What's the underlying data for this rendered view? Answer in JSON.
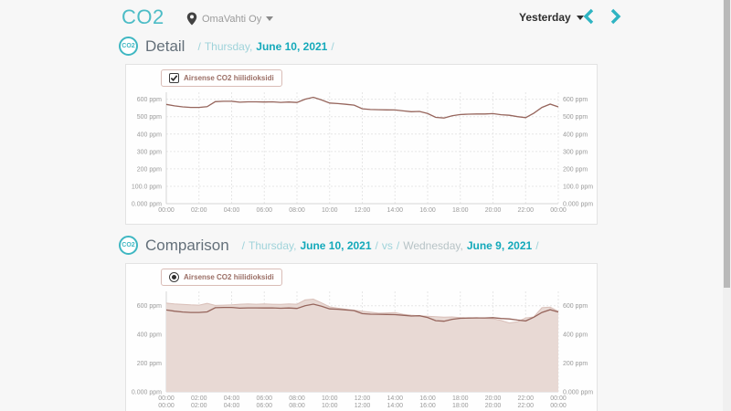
{
  "header": {
    "title": "CO2",
    "location_label": "OmaVahti Oy",
    "period_label": "Yesterday"
  },
  "detail": {
    "heading": "Detail",
    "crumbs": {
      "slash1": "/",
      "day": "Thursday,",
      "date": "June 10, 2021",
      "slash2": "/"
    },
    "legend_label": "Airsense CO2 hiilidioksidi"
  },
  "comparison": {
    "heading": "Comparison",
    "crumbs": {
      "slash1": "/",
      "day1": "Thursday,",
      "date1": "June 10, 2021",
      "slash2": "/",
      "vs": "vs",
      "slash3": "/",
      "day2": "Wednesday,",
      "date2": "June 9, 2021",
      "slash4": "/"
    },
    "legend_label": "Airsense CO2 hiilidioksidi"
  },
  "colors": {
    "accent": "#2fb4c2",
    "line": "#96655c",
    "area_fill": "#e8d9d4",
    "area_edge": "#d9bfb8",
    "grid": "#e6e6e6",
    "axis": "#d5d5d5",
    "tick_text": "#9a9a9a"
  },
  "chart_data": [
    {
      "type": "line",
      "title": "Detail — Airsense CO2 hiilidioksidi",
      "x_unit": "hours",
      "x_step": 0.5,
      "xlim": [
        0,
        24
      ],
      "ylim": [
        0,
        640
      ],
      "grid": true,
      "legend_position": "top-left",
      "yticks": [
        {
          "v": 600,
          "label": "600 ppm"
        },
        {
          "v": 500,
          "label": "500 ppm"
        },
        {
          "v": 400,
          "label": "400 ppm"
        },
        {
          "v": 300,
          "label": "300 ppm"
        },
        {
          "v": 200,
          "label": "200 ppm"
        },
        {
          "v": 100,
          "label": "100.0 ppm"
        },
        {
          "v": 0,
          "label": "0.000 ppm"
        }
      ],
      "xticks": [
        {
          "h": 0,
          "label": "00:00"
        },
        {
          "h": 2,
          "label": "02:00"
        },
        {
          "h": 4,
          "label": "04:00"
        },
        {
          "h": 6,
          "label": "06:00"
        },
        {
          "h": 8,
          "label": "08:00"
        },
        {
          "h": 10,
          "label": "10:00"
        },
        {
          "h": 12,
          "label": "12:00"
        },
        {
          "h": 14,
          "label": "14:00"
        },
        {
          "h": 16,
          "label": "16:00"
        },
        {
          "h": 18,
          "label": "18:00"
        },
        {
          "h": 20,
          "label": "20:00"
        },
        {
          "h": 22,
          "label": "22:00"
        },
        {
          "h": 24,
          "label": "00:00"
        }
      ],
      "xtick_rows": 1,
      "series": [
        {
          "name": "Airsense CO2 hiilidioksidi — Thursday, June 10, 2021",
          "style": "line",
          "values": [
            570,
            562,
            556,
            553,
            553,
            557,
            586,
            588,
            588,
            583,
            585,
            585,
            584,
            585,
            582,
            584,
            581,
            600,
            611,
            596,
            578,
            575,
            571,
            566,
            545,
            541,
            540,
            539,
            538,
            533,
            528,
            530,
            518,
            496,
            492,
            505,
            512,
            514,
            515,
            515,
            517,
            511,
            508,
            500,
            494,
            520,
            553,
            572,
            556
          ]
        }
      ]
    },
    {
      "type": "area",
      "title": "Comparison — Airsense CO2 hiilidioksidi",
      "x_unit": "hours",
      "x_step": 0.5,
      "xlim": [
        0,
        24
      ],
      "ylim": [
        0,
        700
      ],
      "grid": true,
      "legend_position": "top-left",
      "yticks": [
        {
          "v": 600,
          "label": "600 ppm"
        },
        {
          "v": 400,
          "label": "400 ppm"
        },
        {
          "v": 200,
          "label": "200 ppm"
        },
        {
          "v": 0,
          "label": "0.000 ppm"
        }
      ],
      "xticks": [
        {
          "h": 0,
          "label": "00:00"
        },
        {
          "h": 2,
          "label": "02:00"
        },
        {
          "h": 4,
          "label": "04:00"
        },
        {
          "h": 6,
          "label": "06:00"
        },
        {
          "h": 8,
          "label": "08:00"
        },
        {
          "h": 10,
          "label": "10:00"
        },
        {
          "h": 12,
          "label": "12:00"
        },
        {
          "h": 14,
          "label": "14:00"
        },
        {
          "h": 16,
          "label": "16:00"
        },
        {
          "h": 18,
          "label": "18:00"
        },
        {
          "h": 20,
          "label": "20:00"
        },
        {
          "h": 22,
          "label": "22:00"
        },
        {
          "h": 24,
          "label": "00:00"
        }
      ],
      "xtick_rows": 2,
      "series": [
        {
          "name": "Airsense CO2 hiilidioksidi — Wednesday, June 9, 2021",
          "style": "area",
          "values": [
            618,
            613,
            609,
            606,
            604,
            616,
            602,
            604,
            606,
            610,
            612,
            610,
            612,
            610,
            609,
            612,
            610,
            640,
            646,
            620,
            592,
            583,
            575,
            569,
            562,
            555,
            548,
            550,
            552,
            540,
            534,
            530,
            527,
            524,
            520,
            522,
            517,
            514,
            517,
            512,
            509,
            497,
            480,
            488,
            515,
            522,
            586,
            590,
            560
          ]
        },
        {
          "name": "Airsense CO2 hiilidioksidi — Thursday, June 10, 2021",
          "style": "line",
          "values": [
            570,
            562,
            556,
            553,
            553,
            557,
            586,
            588,
            588,
            583,
            585,
            585,
            584,
            585,
            582,
            584,
            581,
            600,
            611,
            596,
            578,
            575,
            571,
            566,
            545,
            541,
            540,
            539,
            538,
            533,
            528,
            530,
            518,
            496,
            492,
            505,
            512,
            514,
            515,
            515,
            517,
            511,
            508,
            500,
            494,
            520,
            553,
            572,
            556
          ]
        }
      ]
    }
  ]
}
